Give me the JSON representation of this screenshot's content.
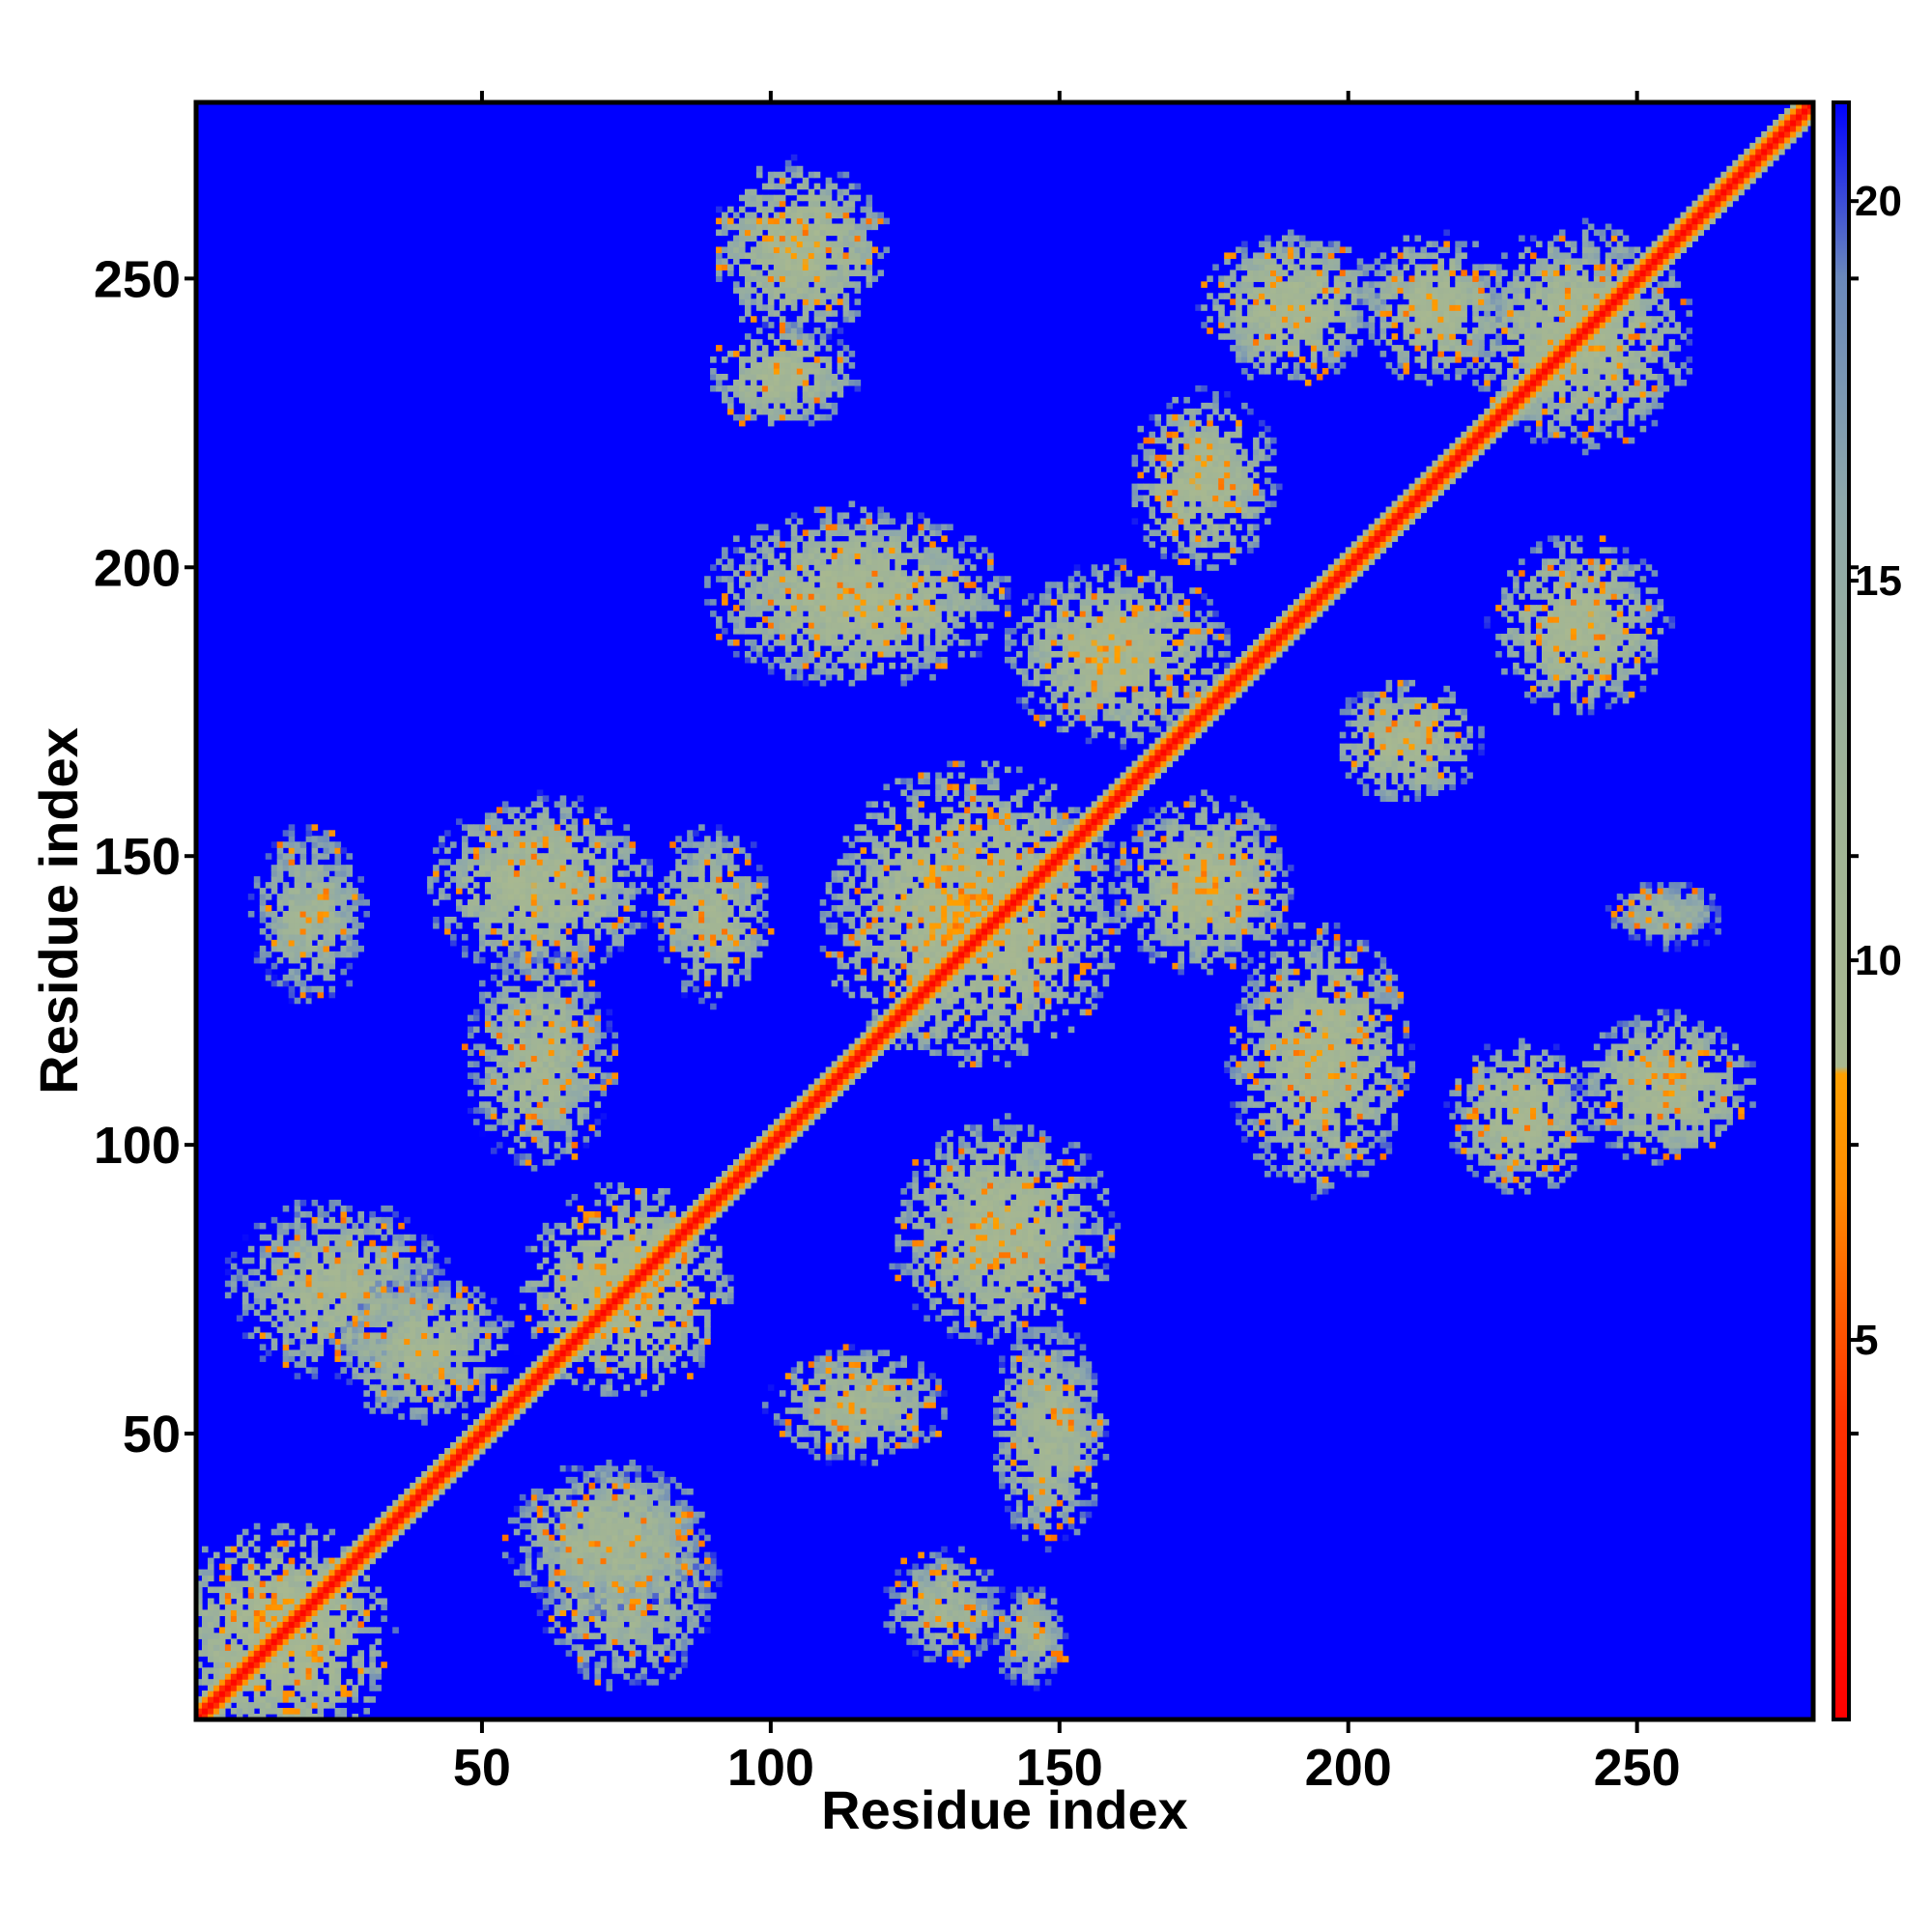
{
  "chart_data": {
    "type": "heatmap",
    "title": "",
    "xlabel": "Residue index",
    "ylabel": "Residue index",
    "x_range": [
      1,
      280
    ],
    "y_range": [
      1,
      280
    ],
    "x_ticks": [
      50,
      100,
      150,
      200,
      250
    ],
    "y_ticks": [
      50,
      100,
      150,
      200,
      250
    ],
    "colorbar": {
      "ticks": [
        5,
        10,
        15,
        20
      ],
      "range": [
        0,
        21.3
      ],
      "stops": [
        {
          "value": 0,
          "color": "#ff0000"
        },
        {
          "value": 4,
          "color": "#ff3300"
        },
        {
          "value": 7,
          "color": "#ff8c00"
        },
        {
          "value": 8.5,
          "color": "#ffa000"
        },
        {
          "value": 8.6,
          "color": "#a8b890"
        },
        {
          "value": 12,
          "color": "#a0b496"
        },
        {
          "value": 16,
          "color": "#8ea8aa"
        },
        {
          "value": 19,
          "color": "#6a88bb"
        },
        {
          "value": 21.3,
          "color": "#0000ff"
        }
      ]
    },
    "background_color": "#0000ff",
    "diagonal": {
      "from": [
        1,
        1
      ],
      "to": [
        280,
        280
      ],
      "value": 3.5
    },
    "contact_regions": [
      {
        "x": 15,
        "y": 15,
        "sx": 15,
        "sy": 15,
        "value": 9
      },
      {
        "x": 25,
        "y": 75,
        "sx": 15,
        "sy": 12,
        "value": 11
      },
      {
        "x": 75,
        "y": 25,
        "sx": 12,
        "sy": 15,
        "value": 11
      },
      {
        "x": 75,
        "y": 75,
        "sx": 14,
        "sy": 14,
        "value": 9
      },
      {
        "x": 40,
        "y": 65,
        "sx": 12,
        "sy": 10,
        "value": 11
      },
      {
        "x": 72,
        "y": 32,
        "sx": 14,
        "sy": 10,
        "value": 11
      },
      {
        "x": 115,
        "y": 55,
        "sx": 12,
        "sy": 8,
        "value": 11
      },
      {
        "x": 148,
        "y": 50,
        "sx": 8,
        "sy": 15,
        "value": 11
      },
      {
        "x": 140,
        "y": 85,
        "sx": 15,
        "sy": 15,
        "value": 10
      },
      {
        "x": 130,
        "y": 20,
        "sx": 8,
        "sy": 8,
        "value": 12
      },
      {
        "x": 145,
        "y": 15,
        "sx": 5,
        "sy": 7,
        "value": 12
      },
      {
        "x": 60,
        "y": 145,
        "sx": 15,
        "sy": 12,
        "value": 10
      },
      {
        "x": 60,
        "y": 115,
        "sx": 10,
        "sy": 15,
        "value": 11
      },
      {
        "x": 20,
        "y": 140,
        "sx": 8,
        "sy": 12,
        "value": 12
      },
      {
        "x": 90,
        "y": 140,
        "sx": 8,
        "sy": 12,
        "value": 11
      },
      {
        "x": 115,
        "y": 195,
        "sx": 20,
        "sy": 12,
        "value": 10
      },
      {
        "x": 105,
        "y": 255,
        "sx": 12,
        "sy": 12,
        "value": 10
      },
      {
        "x": 102,
        "y": 233,
        "sx": 10,
        "sy": 7,
        "value": 10
      },
      {
        "x": 135,
        "y": 140,
        "sx": 20,
        "sy": 20,
        "value": 9
      },
      {
        "x": 160,
        "y": 185,
        "sx": 15,
        "sy": 12,
        "value": 10
      },
      {
        "x": 175,
        "y": 215,
        "sx": 10,
        "sy": 12,
        "value": 10
      },
      {
        "x": 190,
        "y": 245,
        "sx": 12,
        "sy": 10,
        "value": 10
      },
      {
        "x": 195,
        "y": 115,
        "sx": 12,
        "sy": 18,
        "value": 10
      },
      {
        "x": 210,
        "y": 170,
        "sx": 10,
        "sy": 8,
        "value": 10
      },
      {
        "x": 230,
        "y": 105,
        "sx": 10,
        "sy": 10,
        "value": 10
      },
      {
        "x": 255,
        "y": 110,
        "sx": 12,
        "sy": 10,
        "value": 10
      },
      {
        "x": 240,
        "y": 190,
        "sx": 12,
        "sy": 12,
        "value": 10
      },
      {
        "x": 240,
        "y": 240,
        "sx": 15,
        "sy": 15,
        "value": 10
      },
      {
        "x": 215,
        "y": 245,
        "sx": 10,
        "sy": 10,
        "value": 10
      },
      {
        "x": 255,
        "y": 140,
        "sx": 8,
        "sy": 5,
        "value": 13
      },
      {
        "x": 175,
        "y": 145,
        "sx": 12,
        "sy": 12,
        "value": 10
      }
    ]
  }
}
